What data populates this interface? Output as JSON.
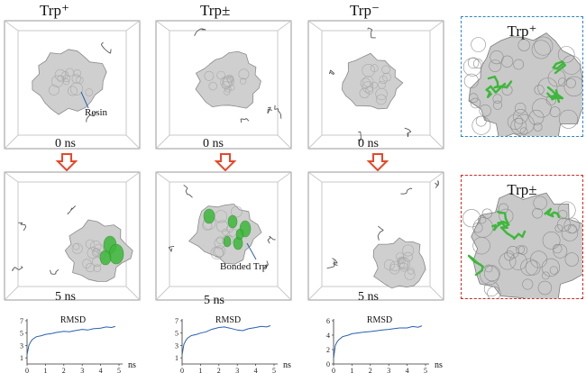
{
  "columns": [
    {
      "title": "Trp⁺",
      "top_time": "0 ns",
      "bottom_time": "5 ns"
    },
    {
      "title": "Trp±",
      "top_time": "0 ns",
      "bottom_time": "5 ns"
    },
    {
      "title": "Trp⁻",
      "top_time": "0 ns",
      "bottom_time": "5 ns"
    }
  ],
  "labels": {
    "resin": "Resin",
    "bonded": "Bonded Trp"
  },
  "insets": [
    {
      "title": "Trp⁺",
      "border_color": "#2a86c9"
    },
    {
      "title": "Trp±",
      "border_color": "#d7261e"
    }
  ],
  "colors": {
    "arrow": "#e8472a",
    "highlight": "#3db83a",
    "rmsd_line": "#2a5fb3",
    "surface": "#cfcfcf"
  },
  "chart_data": [
    {
      "type": "line",
      "title": "RMSD",
      "xlabel": "ns",
      "xlim": [
        0,
        5
      ],
      "ylim": [
        0,
        7
      ],
      "xticks": [
        "0",
        "1",
        "2",
        "3",
        "4",
        "5"
      ],
      "yticks": [
        "1",
        "3",
        "5",
        "7"
      ],
      "series": [
        {
          "x": [
            0,
            0.1,
            0.2,
            0.3,
            0.5,
            0.8,
            1,
            1.3,
            1.6,
            2,
            2.3,
            2.6,
            3,
            3.3,
            3.6,
            4,
            4.3,
            4.6,
            4.8
          ],
          "y": [
            1.5,
            3.0,
            3.6,
            4.0,
            4.4,
            4.6,
            4.8,
            4.9,
            5.1,
            5.3,
            5.2,
            5.4,
            5.6,
            5.5,
            5.7,
            5.8,
            6.0,
            5.9,
            6.1
          ]
        }
      ]
    },
    {
      "type": "line",
      "title": "RMSD",
      "xlabel": "ns",
      "xlim": [
        0,
        5
      ],
      "ylim": [
        0,
        7
      ],
      "xticks": [
        "0",
        "1",
        "2",
        "3",
        "4",
        "5"
      ],
      "yticks": [
        "1",
        "3",
        "5",
        "7"
      ],
      "series": [
        {
          "x": [
            0,
            0.1,
            0.2,
            0.3,
            0.5,
            0.8,
            1,
            1.3,
            1.6,
            2,
            2.3,
            2.6,
            3,
            3.3,
            3.6,
            4,
            4.3,
            4.6,
            4.8
          ],
          "y": [
            1.5,
            3.2,
            3.8,
            4.2,
            4.6,
            4.8,
            5.0,
            5.2,
            5.6,
            5.9,
            6.0,
            5.8,
            5.5,
            5.4,
            5.7,
            5.9,
            6.1,
            6.0,
            6.2
          ]
        }
      ]
    },
    {
      "type": "line",
      "title": "RMSD",
      "xlabel": "ns",
      "xlim": [
        0,
        5
      ],
      "ylim": [
        0,
        6
      ],
      "xticks": [
        "0",
        "1",
        "2",
        "3",
        "4",
        "5"
      ],
      "yticks": [
        "0",
        "2",
        "4",
        "6"
      ],
      "series": [
        {
          "x": [
            0,
            0.1,
            0.2,
            0.3,
            0.5,
            0.8,
            1,
            1.3,
            1.6,
            2,
            2.3,
            2.6,
            3,
            3.3,
            3.6,
            4,
            4.3,
            4.6,
            4.8
          ],
          "y": [
            0.8,
            2.6,
            3.1,
            3.4,
            3.8,
            4.0,
            4.2,
            4.3,
            4.4,
            4.5,
            4.6,
            4.7,
            4.8,
            4.9,
            5.0,
            5.0,
            5.2,
            5.1,
            5.3
          ]
        }
      ]
    }
  ]
}
